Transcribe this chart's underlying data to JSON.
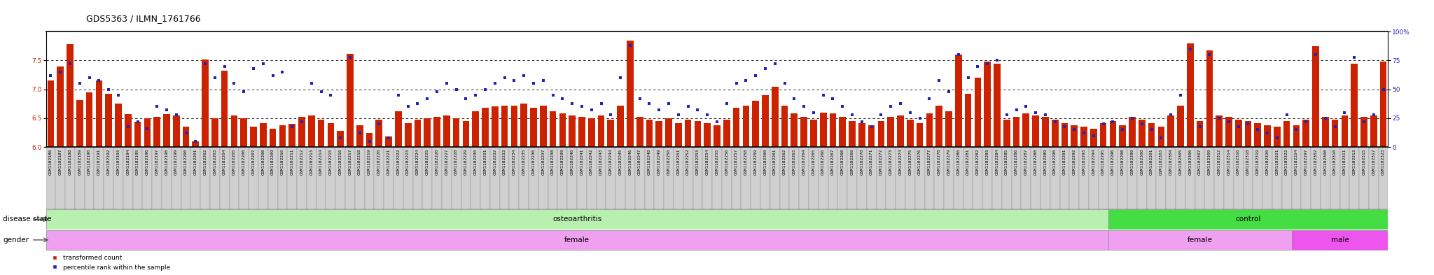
{
  "title": "GDS5363 / ILMN_1761766",
  "samples": [
    "GSM1182186",
    "GSM1182187",
    "GSM1182188",
    "GSM1182189",
    "GSM1182190",
    "GSM1182191",
    "GSM1182192",
    "GSM1182193",
    "GSM1182194",
    "GSM1182195",
    "GSM1182196",
    "GSM1182197",
    "GSM1182198",
    "GSM1182199",
    "GSM1182200",
    "GSM1182201",
    "GSM1182202",
    "GSM1182203",
    "GSM1182204",
    "GSM1182205",
    "GSM1182206",
    "GSM1182207",
    "GSM1182208",
    "GSM1182209",
    "GSM1182210",
    "GSM1182211",
    "GSM1182212",
    "GSM1182213",
    "GSM1182214",
    "GSM1182215",
    "GSM1182216",
    "GSM1182217",
    "GSM1182218",
    "GSM1182219",
    "GSM1182220",
    "GSM1182221",
    "GSM1182222",
    "GSM1182223",
    "GSM1182224",
    "GSM1182225",
    "GSM1182226",
    "GSM1182227",
    "GSM1182228",
    "GSM1182229",
    "GSM1182230",
    "GSM1182231",
    "GSM1182232",
    "GSM1182233",
    "GSM1182234",
    "GSM1182235",
    "GSM1182236",
    "GSM1182237",
    "GSM1182238",
    "GSM1182239",
    "GSM1182240",
    "GSM1182241",
    "GSM1182242",
    "GSM1182243",
    "GSM1182244",
    "GSM1182245",
    "GSM1182246",
    "GSM1182247",
    "GSM1182248",
    "GSM1182249",
    "GSM1182250",
    "GSM1182251",
    "GSM1182252",
    "GSM1182253",
    "GSM1182254",
    "GSM1182255",
    "GSM1182256",
    "GSM1182257",
    "GSM1182258",
    "GSM1182259",
    "GSM1182260",
    "GSM1182261",
    "GSM1182262",
    "GSM1182263",
    "GSM1182264",
    "GSM1182265",
    "GSM1182266",
    "GSM1182267",
    "GSM1182268",
    "GSM1182269",
    "GSM1182270",
    "GSM1182271",
    "GSM1182272",
    "GSM1182273",
    "GSM1182274",
    "GSM1182275",
    "GSM1182276",
    "GSM1182277",
    "GSM1182278",
    "GSM1182279",
    "GSM1182280",
    "GSM1182281",
    "GSM1182282",
    "GSM1182283",
    "GSM1182284",
    "GSM1182285",
    "GSM1182286",
    "GSM1182287",
    "GSM1182288",
    "GSM1182289",
    "GSM1182290",
    "GSM1182291",
    "GSM1182292",
    "GSM1182293",
    "GSM1182294",
    "GSM1182295",
    "GSM1182296",
    "GSM1182298",
    "GSM1182299",
    "GSM1182300",
    "GSM1182301",
    "GSM1182303",
    "GSM1182304",
    "GSM1182305",
    "GSM1182306",
    "GSM1182307",
    "GSM1182309",
    "GSM1182312",
    "GSM1182314",
    "GSM1182316",
    "GSM1182318",
    "GSM1182319",
    "GSM1182320",
    "GSM1182321",
    "GSM1182322",
    "GSM1182324",
    "GSM1182297",
    "GSM1182302",
    "GSM1182308",
    "GSM1182310",
    "GSM1182311",
    "GSM1182313",
    "GSM1182315",
    "GSM1182317",
    "GSM1182323"
  ],
  "bar_values": [
    7.15,
    7.4,
    7.78,
    6.82,
    6.95,
    7.15,
    6.92,
    6.75,
    6.57,
    6.44,
    6.5,
    6.52,
    6.57,
    6.55,
    6.35,
    6.1,
    7.52,
    6.5,
    7.32,
    6.55,
    6.5,
    6.35,
    6.42,
    6.32,
    6.38,
    6.4,
    6.52,
    6.55,
    6.48,
    6.42,
    6.28,
    7.62,
    6.38,
    6.25,
    6.48,
    6.18,
    6.62,
    6.42,
    6.48,
    6.5,
    6.52,
    6.55,
    6.5,
    6.45,
    6.62,
    6.68,
    6.7,
    6.72,
    6.72,
    6.75,
    6.68,
    6.72,
    6.62,
    6.58,
    6.55,
    6.52,
    6.5,
    6.55,
    6.48,
    6.72,
    7.85,
    6.52,
    6.48,
    6.45,
    6.5,
    6.42,
    6.48,
    6.45,
    6.42,
    6.38,
    6.48,
    6.68,
    6.72,
    6.8,
    6.9,
    7.05,
    6.72,
    6.58,
    6.52,
    6.48,
    6.6,
    6.58,
    6.52,
    6.45,
    6.42,
    6.38,
    6.45,
    6.52,
    6.55,
    6.48,
    6.42,
    6.58,
    6.72,
    6.62,
    7.6,
    6.92,
    7.2,
    7.48,
    7.45,
    6.48,
    6.52,
    6.58,
    6.55,
    6.52,
    6.48,
    6.42,
    6.38,
    6.35,
    6.32,
    6.42,
    6.45,
    6.38,
    6.52,
    6.48,
    6.42,
    6.35,
    6.55,
    6.72,
    7.8,
    6.45,
    7.68,
    6.55,
    6.52,
    6.48,
    6.45,
    6.42,
    6.38,
    6.35,
    6.45,
    6.38,
    6.48,
    7.75,
    6.52,
    6.48,
    6.55,
    7.45,
    6.52,
    6.55,
    7.48
  ],
  "percentile_values": [
    62,
    65,
    72,
    55,
    60,
    58,
    50,
    45,
    18,
    22,
    16,
    35,
    32,
    28,
    12,
    5,
    72,
    60,
    70,
    55,
    48,
    68,
    72,
    62,
    65,
    18,
    22,
    55,
    48,
    45,
    8,
    78,
    12,
    5,
    20,
    8,
    45,
    35,
    38,
    42,
    48,
    55,
    50,
    42,
    45,
    50,
    55,
    60,
    58,
    62,
    55,
    58,
    45,
    42,
    38,
    35,
    32,
    38,
    28,
    60,
    88,
    42,
    38,
    32,
    38,
    28,
    35,
    32,
    28,
    22,
    38,
    55,
    58,
    62,
    68,
    72,
    55,
    42,
    35,
    30,
    45,
    42,
    35,
    28,
    22,
    18,
    28,
    35,
    38,
    30,
    25,
    42,
    58,
    48,
    80,
    60,
    70,
    72,
    75,
    28,
    32,
    35,
    30,
    28,
    22,
    18,
    15,
    12,
    10,
    20,
    22,
    15,
    25,
    20,
    15,
    8,
    28,
    45,
    85,
    18,
    80,
    25,
    22,
    18,
    20,
    15,
    12,
    8,
    28,
    15,
    22,
    80,
    25,
    18,
    30,
    78,
    22,
    28,
    50
  ],
  "ylim_left": [
    6.0,
    8.0
  ],
  "ylim_right": [
    0,
    100
  ],
  "yticks_left": [
    6.0,
    6.5,
    7.0,
    7.5
  ],
  "yticks_right": [
    0,
    25,
    50,
    75,
    100
  ],
  "ytick_labels_right": [
    "0",
    "25",
    "50",
    "75",
    "100%"
  ],
  "bar_color": "#cc2200",
  "dot_color": "#2222bb",
  "bg_color": "#ffffff",
  "grid_color": "#000000",
  "tick_box_color": "#cccccc",
  "tick_box_edge": "#888888",
  "disease_state_label": "disease state",
  "gender_label": "gender",
  "osteoarthritis_label": "osteoarthritis",
  "control_label": "control",
  "female_label1": "female",
  "female_label2": "female",
  "male_label": "male",
  "legend_bar_label": "transformed count",
  "legend_dot_label": "percentile rank within the sample",
  "n_osteoarthritis": 110,
  "n_control_female": 19,
  "n_control_male": 10,
  "title_fontsize": 9,
  "tick_fontsize": 4.5,
  "annot_fontsize": 7.5,
  "legend_fontsize": 6.5
}
